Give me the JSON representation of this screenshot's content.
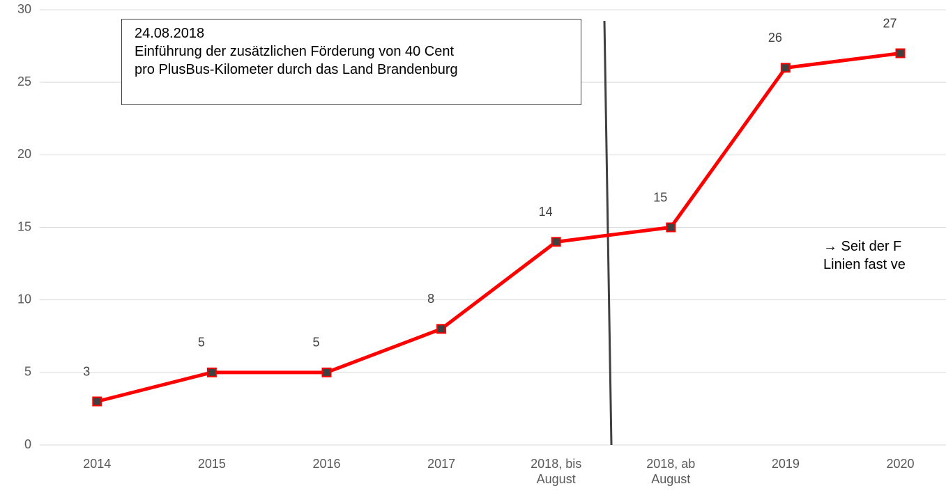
{
  "chart_data": {
    "type": "line",
    "categories": [
      "2014",
      "2015",
      "2016",
      "2017",
      "2018, bis August",
      "2018, ab August",
      "2019",
      "2020"
    ],
    "values": [
      3,
      5,
      5,
      8,
      14,
      15,
      26,
      27
    ],
    "color": "#ff0000",
    "marker_color": "#404040",
    "ylim": [
      0,
      30
    ],
    "yticks": [
      0,
      5,
      10,
      15,
      20,
      25,
      30
    ],
    "grid": true,
    "annotation_box": [
      "24.08.2018",
      "Einführung der zusätzlichen Förderung von 40 Cent",
      "pro PlusBus-Kilometer durch das Land Brandenburg"
    ],
    "note": [
      "→ Seit der F",
      "Linien fast ve"
    ]
  }
}
